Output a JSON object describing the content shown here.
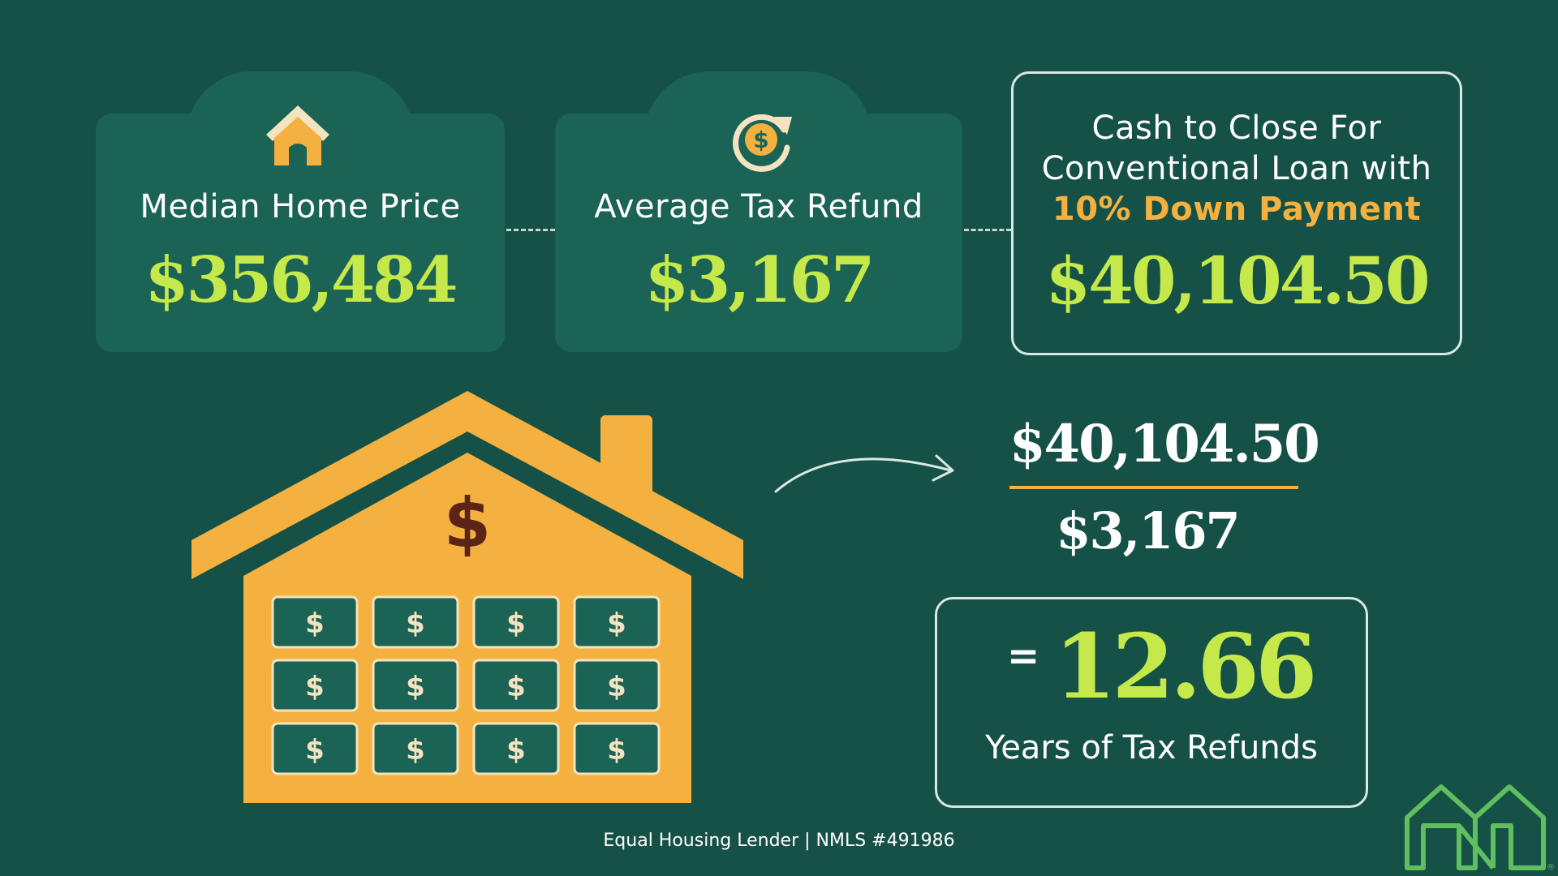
{
  "colors": {
    "background": "#155147",
    "card": "#1b6355",
    "lime": "#c5e84a",
    "orange": "#f4b13f",
    "white": "#ffffff",
    "brown": "#5b2417",
    "logo_green": "#5fbf5f"
  },
  "cards": [
    {
      "icon": "house-icon",
      "label": "Median Home Price",
      "value": "$356,484"
    },
    {
      "icon": "refund-cycle-icon",
      "label": "Average Tax Refund",
      "value": "$3,167"
    }
  ],
  "cash_card": {
    "line1": "Cash to Close For",
    "line2": "Conventional Loan with",
    "highlight": "10% Down Payment",
    "value": "$40,104.50"
  },
  "illustration": {
    "icon": "money-house-icon",
    "roof_symbol": "$",
    "window_symbol": "$"
  },
  "calculation": {
    "numerator": "$40,104.50",
    "denominator": "$3,167",
    "equals": "=",
    "result": "12.66",
    "result_label": "Years of Tax Refunds"
  },
  "footer": "Equal Housing Lender | NMLS #491986",
  "logo": {
    "icon": "nl-logo-icon",
    "registered": "®"
  }
}
